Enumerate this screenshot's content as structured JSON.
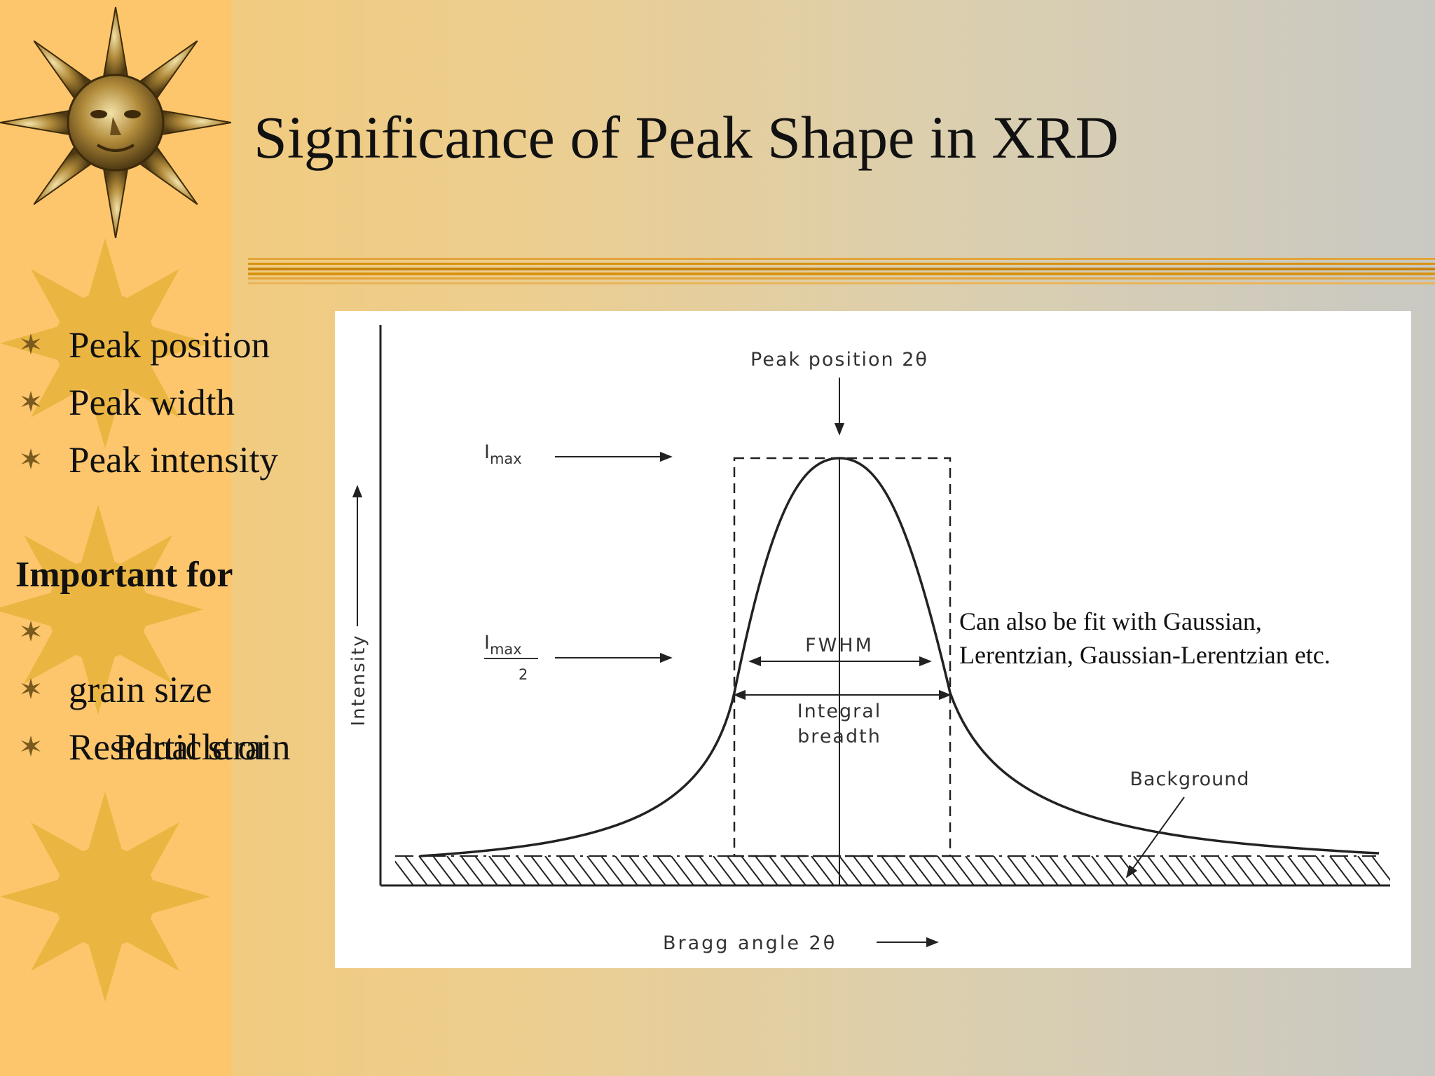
{
  "slide": {
    "title": "Significance of Peak Shape in XRD",
    "bullets": [
      "Peak position",
      "Peak width",
      "Peak intensity"
    ],
    "important_heading": "Important for",
    "important_bullets": [
      " Particle or",
      "grain size",
      "Residual strain"
    ],
    "fit_note": [
      "Can also be fit with Gaussian,",
      "Lerentzian, Gaussian-Lerentzian etc."
    ]
  },
  "diagram": {
    "peak_position_label": "Peak position 2θ",
    "imax_I": "I",
    "imax_sub": "max",
    "half_I": "I",
    "half_sub": "max",
    "half_den": "2",
    "fwhm_label": "FWHM",
    "integral_line1": "Integral",
    "integral_line2": "breadth",
    "background_label": "Background",
    "y_axis_label": "Intensity",
    "x_axis_label": "Bragg angle 2θ"
  },
  "colors": {
    "sidebar": "#fdc66c",
    "sun": "#e7b43a",
    "rule": "#d9920f",
    "ink": "#222222"
  },
  "icons": [
    "sun-face-emblem",
    "sun-decoration",
    "star-bullet"
  ]
}
